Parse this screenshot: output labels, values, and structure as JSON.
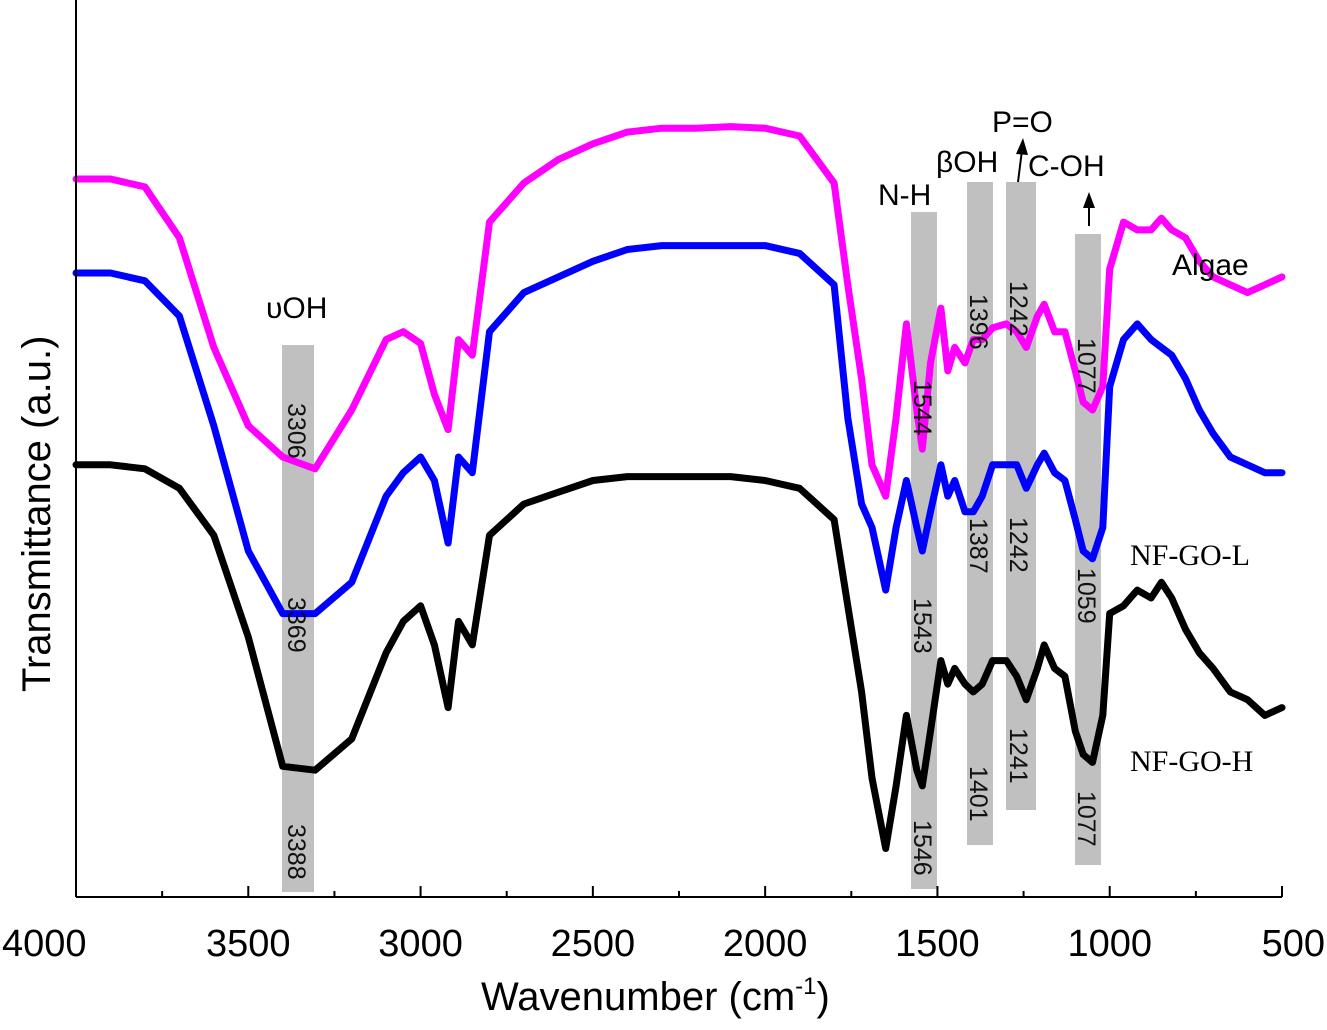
{
  "chart_data": {
    "type": "line",
    "xlabel": "Wavenumber (cm",
    "xlabel_sup": "-1",
    "xlabel_suffix": ")",
    "ylabel": "Transmittance (a.u.)",
    "xlim": [
      4000,
      500
    ],
    "ylim": [
      0,
      100
    ],
    "x_ticks": [
      4000,
      3500,
      3000,
      2500,
      2000,
      1500,
      1000,
      500
    ],
    "minor_x_ticks": [
      3750,
      3250,
      2750,
      2250,
      1750,
      1250,
      750
    ],
    "y_ticks_shown": false,
    "grid": false,
    "x": [
      4000,
      3900,
      3800,
      3700,
      3600,
      3500,
      3400,
      3306,
      3200,
      3100,
      3050,
      3000,
      2960,
      2920,
      2890,
      2850,
      2800,
      2700,
      2600,
      2500,
      2400,
      2300,
      2200,
      2100,
      2000,
      1900,
      1800,
      1760,
      1720,
      1690,
      1650,
      1620,
      1590,
      1560,
      1544,
      1520,
      1490,
      1470,
      1450,
      1420,
      1396,
      1370,
      1340,
      1300,
      1270,
      1242,
      1210,
      1190,
      1160,
      1130,
      1100,
      1077,
      1050,
      1020,
      1000,
      960,
      920,
      880,
      850,
      820,
      780,
      740,
      700,
      650,
      600,
      550,
      500
    ],
    "series": [
      {
        "name": "Algae",
        "color": "#ff00ff",
        "values": [
          88.5,
          88.5,
          87.5,
          81,
          67,
          57,
          53,
          51.5,
          59,
          68,
          69,
          67.5,
          61,
          56.5,
          68,
          66,
          83,
          88,
          91,
          93,
          94.5,
          95,
          95,
          95.2,
          95,
          94,
          88,
          75,
          63,
          52,
          48,
          58,
          70,
          59,
          54,
          65,
          72,
          64,
          67,
          65,
          68,
          68,
          69.5,
          70,
          69,
          67,
          71,
          72.5,
          69,
          69,
          64,
          60,
          59,
          62,
          77,
          83,
          82,
          82,
          83.5,
          82,
          81,
          78,
          76,
          75,
          74,
          75,
          76
        ]
      },
      {
        "name": "NF-GO-L",
        "color": "#0000ff",
        "values": [
          76.5,
          76.5,
          75.5,
          71,
          57,
          41,
          33,
          33,
          37,
          48,
          51,
          53,
          50,
          42,
          53,
          51,
          69,
          74,
          76,
          78,
          79.5,
          80,
          80,
          80,
          80,
          79,
          75,
          58,
          47,
          44,
          36,
          44,
          50,
          44,
          41,
          46,
          52,
          48,
          50,
          46,
          46,
          48,
          52,
          52,
          52,
          49,
          52,
          53.5,
          51,
          50,
          45,
          41,
          40,
          44,
          62,
          68,
          70,
          68,
          67,
          66,
          63,
          59,
          56,
          53,
          52,
          51,
          51
        ]
      },
      {
        "name": "NF-GO-H",
        "color": "#000000",
        "values": [
          52,
          52,
          51.5,
          49,
          43,
          30,
          13.5,
          13,
          17,
          28,
          32,
          34,
          29,
          21,
          32,
          29,
          43,
          47,
          48.5,
          50,
          50.5,
          50.5,
          50.5,
          50.5,
          50,
          49,
          45,
          34,
          23,
          12,
          3,
          11,
          20,
          13,
          11,
          18,
          27,
          24,
          26,
          24,
          23,
          24,
          27,
          27,
          25,
          22,
          26,
          29,
          26,
          25,
          18,
          15,
          14,
          20,
          33,
          34,
          36,
          35,
          37,
          35,
          31,
          28,
          26,
          23,
          22,
          20,
          21
        ]
      }
    ],
    "bands": [
      {
        "group": "υOH",
        "values": [
          "3306",
          "3369",
          "3388"
        ]
      },
      {
        "group": "N-H",
        "values": [
          "1544",
          "1543",
          "1546"
        ]
      },
      {
        "group": "βOH",
        "values": [
          "1396",
          "1387",
          "1401"
        ]
      },
      {
        "group": "P=O",
        "values": [
          "1242",
          "1242",
          "1241"
        ]
      },
      {
        "group": "C-OH",
        "values": [
          "1077",
          "1059",
          "1077"
        ]
      }
    ],
    "legend": [
      "Algae",
      "NF-GO-L",
      "NF-GO-H"
    ],
    "band_color": "#c0c0c0"
  }
}
